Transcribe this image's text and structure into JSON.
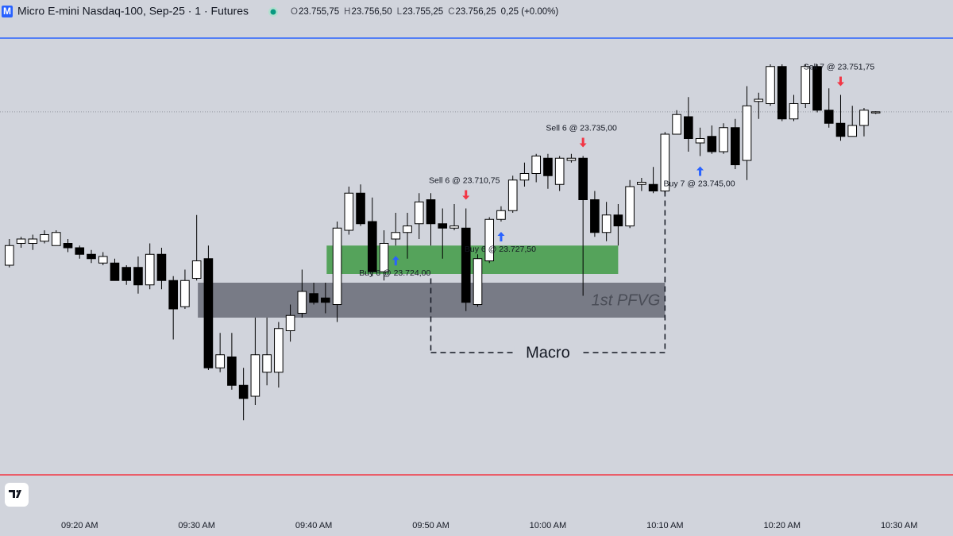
{
  "header": {
    "logo": "M",
    "title": "Micro E-mini Nasdaq-100, Sep-25 · 1 · Futures",
    "legend": [
      {
        "label": "O",
        "value": "23.755,75"
      },
      {
        "label": "H",
        "value": "23.756,50"
      },
      {
        "label": "L",
        "value": "23.755,25"
      },
      {
        "label": "C",
        "value": "23.756,25"
      }
    ],
    "change": "0,25 (+0.00%)"
  },
  "chart_data": {
    "type": "candlestick",
    "xlim": [
      -0.8,
      80.6
    ],
    "xticks": [
      {
        "value": 6,
        "label": "09:20 AM"
      },
      {
        "value": 16,
        "label": "09:30 AM"
      },
      {
        "value": 26,
        "label": "09:40 AM"
      },
      {
        "value": 36,
        "label": "09:50 AM"
      },
      {
        "value": 46,
        "label": "10:00 AM"
      },
      {
        "value": 56,
        "label": "10:10 AM"
      },
      {
        "value": 66,
        "label": "10:20 AM"
      },
      {
        "value": 76,
        "label": "10:30 AM"
      }
    ],
    "ylim": [
      23590,
      23790
    ],
    "up_color": "#ffffff",
    "down_color": "#000000",
    "wick_color": "#000000",
    "ohlc": {
      "open": [
        23686,
        23696,
        23696,
        23697,
        23695,
        23696,
        23694,
        23691,
        23687,
        23687,
        23685,
        23685,
        23677,
        23691,
        23679,
        23667,
        23680,
        23689,
        23639,
        23644,
        23631,
        23626,
        23637,
        23637,
        23656,
        23664,
        23673,
        23671,
        23668,
        23702,
        23719,
        23706,
        23683,
        23698,
        23701,
        23705,
        23716,
        23705,
        23703,
        23703,
        23668,
        23688,
        23707,
        23711,
        23725,
        23728,
        23735,
        23723,
        23734,
        23735,
        23716,
        23701,
        23709,
        23704,
        23723,
        23723,
        23720,
        23746,
        23754,
        23742,
        23745,
        23738,
        23749,
        23734,
        23761,
        23760,
        23777,
        23753,
        23760,
        23777,
        23757,
        23751,
        23745,
        23750,
        23755.75
      ],
      "high": [
        23698,
        23699,
        23700,
        23702,
        23702,
        23698,
        23695,
        23693,
        23692,
        23689,
        23686,
        23690,
        23696,
        23694,
        23681,
        23684,
        23709,
        23695,
        23655,
        23655,
        23639,
        23662,
        23662,
        23660,
        23668,
        23684,
        23678,
        23678,
        23706,
        23722,
        23723,
        23717,
        23702,
        23710,
        23710,
        23719,
        23719,
        23712,
        23714,
        23712,
        23691,
        23708,
        23713,
        23727,
        23733,
        23737,
        23737,
        23736,
        23737,
        23736,
        23720,
        23715,
        23714,
        23725,
        23726,
        23731,
        23747,
        23757,
        23763,
        23749,
        23750,
        23751,
        23753,
        23768,
        23765,
        23778,
        23778,
        23764,
        23778,
        23778,
        23767,
        23764,
        23759,
        23758,
        23756.5
      ],
      "low": [
        23685,
        23694,
        23693,
        23696,
        23695,
        23692,
        23689,
        23687,
        23686,
        23679,
        23677,
        23673,
        23675,
        23675,
        23652,
        23666,
        23679,
        23638,
        23637,
        23629,
        23615,
        23622,
        23631,
        23630,
        23651,
        23662,
        23668,
        23664,
        23660,
        23700,
        23704,
        23681,
        23679,
        23695,
        23689,
        23698,
        23695,
        23689,
        23702,
        23665,
        23667,
        23687,
        23706,
        23710,
        23722,
        23724,
        23721,
        23720,
        23733,
        23672,
        23699,
        23697,
        23695,
        23703,
        23720,
        23719,
        23719,
        23746,
        23738,
        23736,
        23737,
        23737,
        23730,
        23725,
        23753,
        23759,
        23752,
        23752,
        23758,
        23756,
        23749,
        23743,
        23745,
        23745,
        23755.25
      ],
      "close": [
        23695,
        23698,
        23698,
        23700,
        23701,
        23694,
        23691,
        23689,
        23690,
        23679,
        23679,
        23677,
        23691,
        23679,
        23666,
        23679,
        23688,
        23639,
        23645,
        23631,
        23625,
        23645,
        23645,
        23657,
        23663,
        23674,
        23669,
        23669,
        23703,
        23719,
        23705,
        23683,
        23696,
        23701,
        23704,
        23715,
        23705,
        23703,
        23704,
        23669,
        23689,
        23707,
        23711,
        23725,
        23728,
        23736,
        23727,
        23735,
        23735,
        23716,
        23701,
        23709,
        23704,
        23722,
        23724,
        23720,
        23746,
        23755,
        23744,
        23744,
        23738,
        23749,
        23732,
        23759,
        23762,
        23777,
        23753,
        23760,
        23777,
        23757,
        23751,
        23745,
        23750,
        23757,
        23756.25
      ]
    },
    "zones": [
      {
        "x": [
          16.1,
          56
        ],
        "y": [
          23662,
          23678
        ],
        "color": "#787b86",
        "label": "1st PFVG"
      },
      {
        "x": [
          27.1,
          52
        ],
        "y": [
          23682,
          23695
        ],
        "color": "#55a35b"
      }
    ],
    "macro": {
      "label": "Macro",
      "x": [
        36,
        56
      ],
      "bottom": 23646,
      "left_top": 23680,
      "right_top": 23720
    },
    "trades": [
      {
        "side": "buy",
        "index": 33,
        "label": "Buy 6 @ 23.724,00"
      },
      {
        "side": "sell",
        "index": 39,
        "label": "Sell 6 @ 23.710,75"
      },
      {
        "side": "buy",
        "index": 42,
        "label": "Buy 6 @ 23.727,50"
      },
      {
        "side": "sell",
        "index": 49,
        "label": "Sell 6 @ 23.735,00"
      },
      {
        "side": "buy",
        "index": 59,
        "label": "Buy 7 @ 23.745,00"
      },
      {
        "side": "sell",
        "index": 71,
        "label": "Sell 7 @ 23.751,75"
      }
    ]
  }
}
